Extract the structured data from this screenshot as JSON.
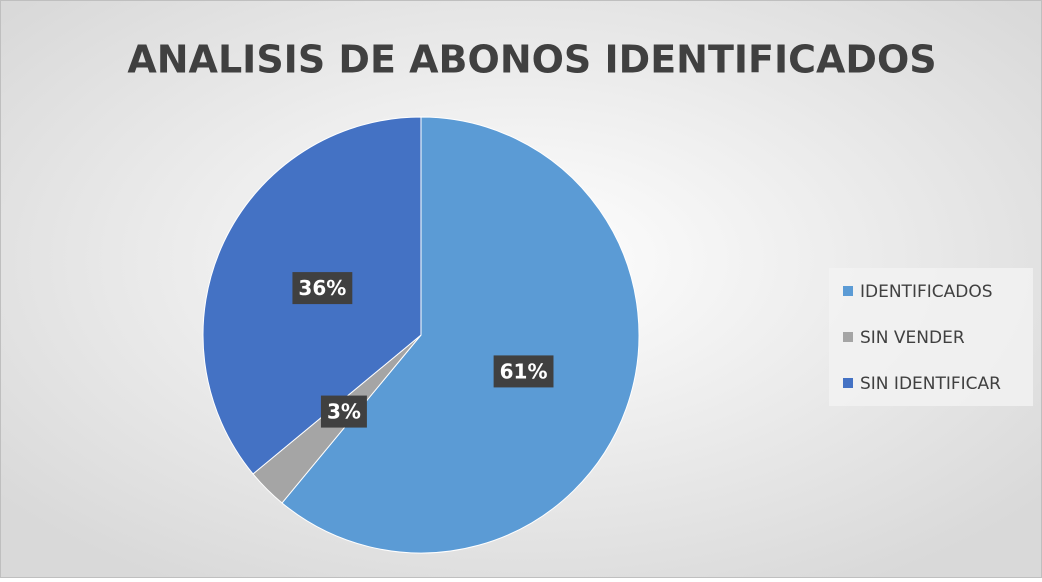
{
  "chart_data": {
    "type": "pie",
    "title": "ANALISIS DE ABONOS IDENTIFICADOS",
    "categories": [
      "IDENTIFICADOS",
      "SIN VENDER",
      "SIN IDENTIFICAR"
    ],
    "values": [
      61,
      3,
      36
    ],
    "value_labels": [
      "61%",
      "3%",
      "36%"
    ],
    "colors": [
      "#5b9bd5",
      "#a5a5a5",
      "#4472c4"
    ],
    "legend": "right"
  }
}
